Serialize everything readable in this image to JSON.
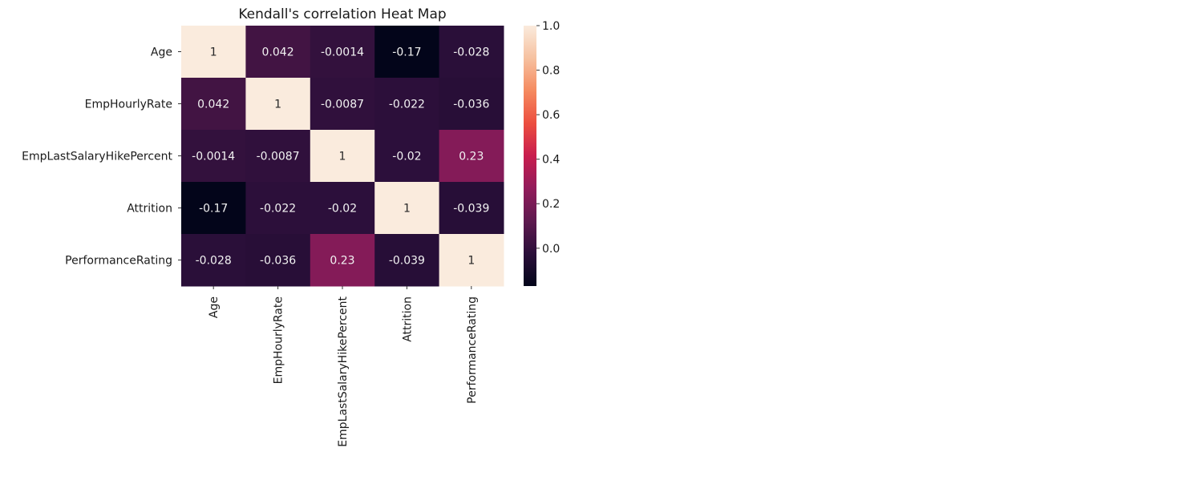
{
  "chart_data": {
    "type": "heatmap",
    "title": "Kendall's correlation Heat Map",
    "row_labels": [
      "Age",
      "EmpHourlyRate",
      "EmpLastSalaryHikePercent",
      "Attrition",
      "PerformanceRating"
    ],
    "col_labels": [
      "Age",
      "EmpHourlyRate",
      "EmpLastSalaryHikePercent",
      "Attrition",
      "PerformanceRating"
    ],
    "values": [
      [
        1,
        0.042,
        -0.0014,
        -0.17,
        -0.028
      ],
      [
        0.042,
        1,
        -0.0087,
        -0.022,
        -0.036
      ],
      [
        -0.0014,
        -0.0087,
        1,
        -0.02,
        0.23
      ],
      [
        -0.17,
        -0.022,
        -0.02,
        1,
        -0.039
      ],
      [
        -0.028,
        -0.036,
        0.23,
        -0.039,
        1
      ]
    ],
    "cell_labels": [
      [
        "1",
        "0.042",
        "-0.0014",
        "-0.17",
        "-0.028"
      ],
      [
        "0.042",
        "1",
        "-0.0087",
        "-0.022",
        "-0.036"
      ],
      [
        "-0.0014",
        "-0.0087",
        "1",
        "-0.02",
        "0.23"
      ],
      [
        "-0.17",
        "-0.022",
        "-0.02",
        "1",
        "-0.039"
      ],
      [
        "-0.028",
        "-0.036",
        "0.23",
        "-0.039",
        "1"
      ]
    ],
    "colorbar": {
      "vmin": -0.17,
      "vmax": 1.0,
      "ticks": [
        0.0,
        0.2,
        0.4,
        0.6,
        0.8,
        1.0
      ],
      "tick_labels": [
        "0.0",
        "0.2",
        "0.4",
        "0.6",
        "0.8",
        "1.0"
      ],
      "colormap": "rocket",
      "stops": [
        "#03051a",
        "#2b0f3a",
        "#5e1a4f",
        "#921c5b",
        "#c81d4e",
        "#ec4e3f",
        "#f58a5f",
        "#f6c1a0",
        "#faebdd"
      ]
    }
  }
}
